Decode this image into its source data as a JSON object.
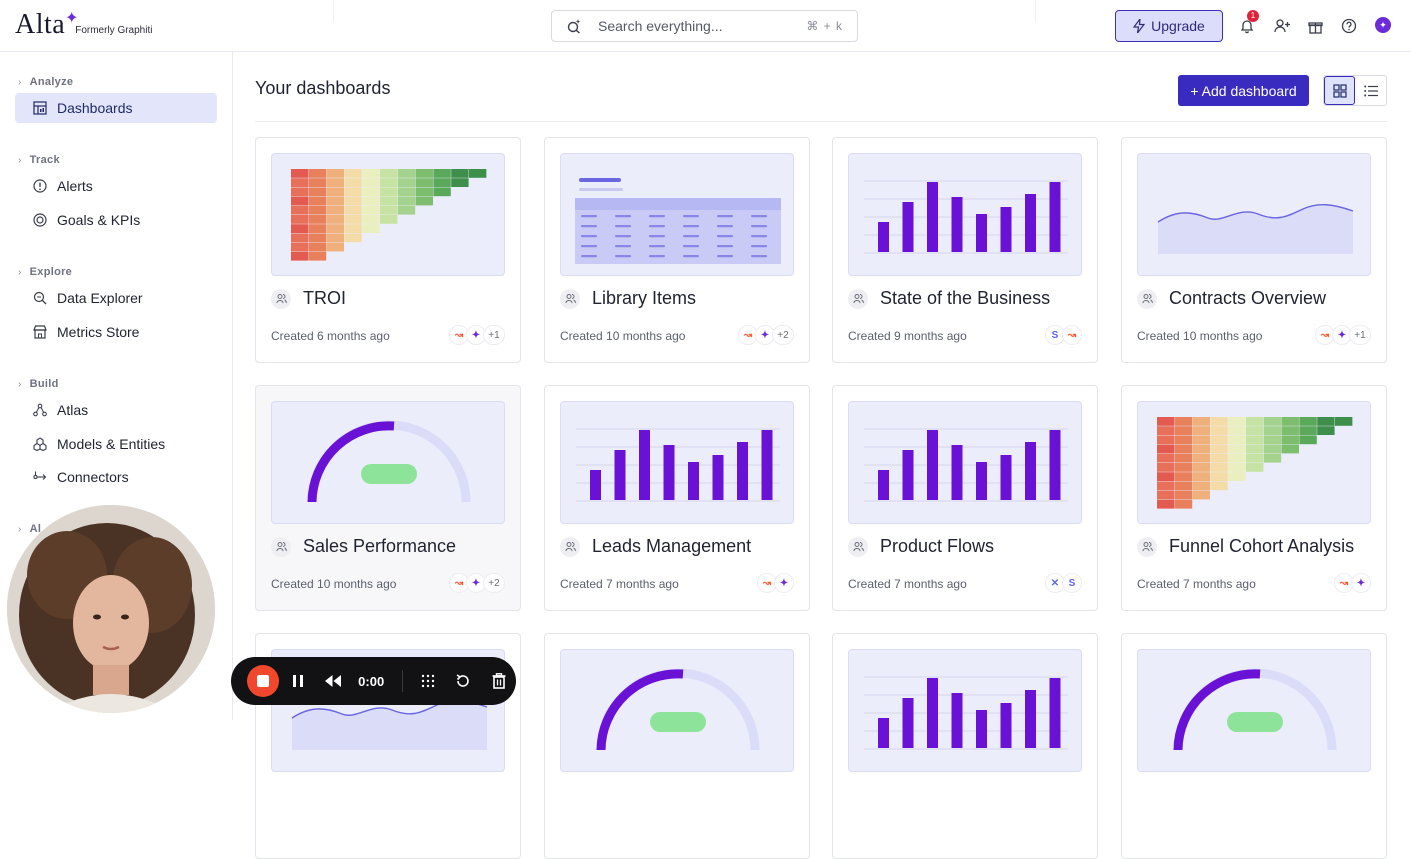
{
  "brand": {
    "name": "Alta",
    "subtitle": "Formerly Graphiti",
    "accent": "#6c2bd9"
  },
  "search": {
    "placeholder": "Search everything...",
    "shortcut": "⌘ + k"
  },
  "header": {
    "upgrade_label": "Upgrade",
    "notification_count": "1"
  },
  "sidebar": {
    "sections": [
      {
        "label": "Analyze",
        "items": [
          {
            "label": "Dashboards",
            "icon": "dashboard-icon",
            "active": true
          }
        ]
      },
      {
        "label": "Track",
        "items": [
          {
            "label": "Alerts",
            "icon": "alert-icon"
          },
          {
            "label": "Goals & KPIs",
            "icon": "target-icon"
          }
        ]
      },
      {
        "label": "Explore",
        "items": [
          {
            "label": "Data Explorer",
            "icon": "data-explorer-icon"
          },
          {
            "label": "Metrics Store",
            "icon": "store-icon"
          }
        ]
      },
      {
        "label": "Build",
        "items": [
          {
            "label": "Atlas",
            "icon": "atlas-icon"
          },
          {
            "label": "Models & Entities",
            "icon": "models-icon"
          },
          {
            "label": "Connectors",
            "icon": "connector-icon"
          }
        ]
      },
      {
        "label": "Al",
        "items": []
      }
    ]
  },
  "main": {
    "title": "Your dashboards",
    "add_label": "+ Add dashboard",
    "cards": [
      {
        "title": "TROI",
        "meta": "Created 6 months ago",
        "thumb": "heatmap",
        "badges": [
          "hubspot",
          "spark"
        ],
        "more": "+1"
      },
      {
        "title": "Library Items",
        "meta": "Created 10 months ago",
        "thumb": "table",
        "badges": [
          "hubspot",
          "spark"
        ],
        "more": "+2"
      },
      {
        "title": "State of the Business",
        "meta": "Created 9 months ago",
        "thumb": "bars",
        "badges": [
          "stripe",
          "hubspot"
        ],
        "more": ""
      },
      {
        "title": "Contracts Overview",
        "meta": "Created 10 months ago",
        "thumb": "area",
        "badges": [
          "hubspot",
          "spark"
        ],
        "more": "+1"
      },
      {
        "title": "Sales Performance",
        "meta": "Created 10 months ago",
        "thumb": "gauge",
        "badges": [
          "hubspot",
          "spark"
        ],
        "more": "+2"
      },
      {
        "title": "Leads Management",
        "meta": "Created 7 months ago",
        "thumb": "bars",
        "badges": [
          "hubspot",
          "spark"
        ],
        "more": ""
      },
      {
        "title": "Product Flows",
        "meta": "Created 7 months ago",
        "thumb": "bars",
        "badges": [
          "cross",
          "stripe"
        ],
        "more": ""
      },
      {
        "title": "Funnel Cohort Analysis",
        "meta": "Created 7 months ago",
        "thumb": "heatmap",
        "badges": [
          "hubspot",
          "spark"
        ],
        "more": ""
      },
      {
        "title": "",
        "meta": "",
        "thumb": "area",
        "badges": [],
        "more": ""
      },
      {
        "title": "",
        "meta": "",
        "thumb": "gauge",
        "badges": [],
        "more": ""
      },
      {
        "title": "",
        "meta": "",
        "thumb": "bars",
        "badges": [],
        "more": ""
      },
      {
        "title": "",
        "meta": "",
        "thumb": "gauge",
        "badges": [],
        "more": ""
      }
    ]
  },
  "recorder": {
    "time": "0:00"
  }
}
